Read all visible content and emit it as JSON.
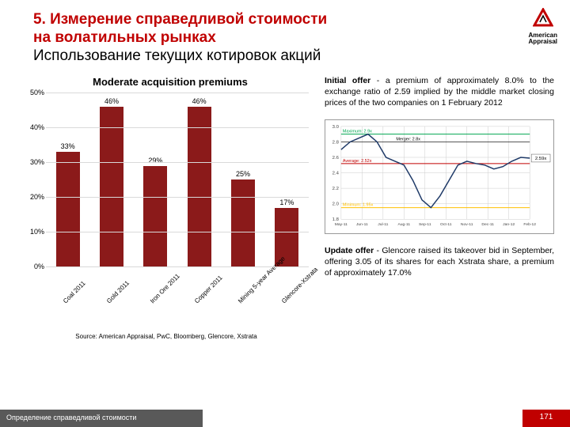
{
  "header": {
    "title_line1": "5. Измерение справедливой стоимости",
    "title_line2": "на волатильных рынках",
    "subtitle": "Использование текущих котировок акций"
  },
  "logo": {
    "line1": "American",
    "line2": "Appraisal"
  },
  "bar_chart": {
    "title": "Moderate acquisition premiums",
    "y_max": 50,
    "y_ticks": [
      "0%",
      "10%",
      "20%",
      "30%",
      "40%",
      "50%"
    ],
    "y_tick_values": [
      0,
      10,
      20,
      30,
      40,
      50
    ],
    "categories": [
      "Coal 2011",
      "Gold 2011",
      "Iron Ore 2011",
      "Copper 2011",
      "Mining 5-year Average",
      "Glencore-Xstrata"
    ],
    "values": [
      33,
      46,
      29,
      46,
      25,
      17
    ],
    "labels": [
      "33%",
      "46%",
      "29%",
      "46%",
      "25%",
      "17%"
    ],
    "bar_color": "#8b1a1a",
    "grid_color": "#d9d9d9",
    "source": "Source: American Appraisal, PwC, Bloomberg, Glencore, Xstrata"
  },
  "right_text": {
    "block1_bold": "Initial offer",
    "block1_rest": " - a premium of approximately 8.0% to the exchange ratio of 2.59 implied by the middle market closing prices of the two companies on 1 February 2012",
    "block2_bold": "Update offer",
    "block2_rest": " - Glencore raised its takeover bid in September, offering 3.05 of its shares for each Xstrata share, a premium of approximately 17.0%"
  },
  "line_chart": {
    "y_min": 1.8,
    "y_max": 3.0,
    "y_step": 0.2,
    "x_labels": [
      "May-11",
      "Jun-11",
      "Jul-11",
      "Aug-11",
      "Sep-11",
      "Oct-11",
      "Nov-11",
      "Dec-11",
      "Jan-12",
      "Feb-12"
    ],
    "max_label": "Maximum: 2.9x",
    "max_value": 2.9,
    "max_color": "#00a651",
    "avg_label": "Average: 2.52x",
    "avg_value": 2.52,
    "avg_color": "#c00000",
    "min_label": "Minimum: 1.95x",
    "min_value": 1.95,
    "min_color": "#ffc000",
    "merger_label": "Merger: 2.8x",
    "merger_value": 2.8,
    "end_label": "2.59x",
    "series_color": "#1f3a68",
    "series": [
      2.7,
      2.8,
      2.85,
      2.9,
      2.8,
      2.6,
      2.55,
      2.5,
      2.3,
      2.05,
      1.95,
      2.1,
      2.3,
      2.5,
      2.55,
      2.52,
      2.5,
      2.45,
      2.48,
      2.55,
      2.6,
      2.59
    ]
  },
  "footer": {
    "left": "Определение справедливой стоимости",
    "page": "171"
  }
}
